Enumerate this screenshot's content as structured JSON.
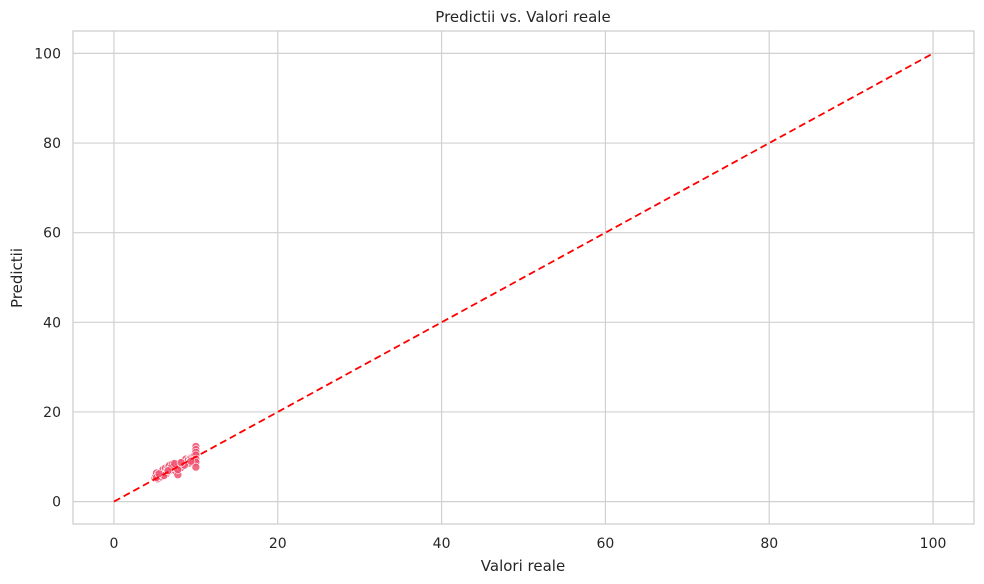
{
  "chart_data": {
    "type": "scatter",
    "title": "Predictii vs. Valori reale",
    "xlabel": "Valori reale",
    "ylabel": "Predictii",
    "xlim": [
      -5,
      105
    ],
    "ylim": [
      -5,
      105
    ],
    "x_ticks": [
      0,
      20,
      40,
      60,
      80,
      100
    ],
    "y_ticks": [
      0,
      20,
      40,
      60,
      80,
      100
    ],
    "grid": true,
    "point_color": "#f0506e",
    "reference_line": {
      "style": "dashed",
      "color": "#ff0000",
      "from": [
        0,
        0
      ],
      "to": [
        100,
        100
      ]
    },
    "series": [
      {
        "x": [
          5.0,
          5.1,
          5.2,
          5.3,
          5.4,
          5.5,
          5.6,
          5.7,
          5.8,
          5.9,
          6.0,
          6.1,
          6.2,
          6.3,
          6.4,
          6.5,
          6.6,
          6.7,
          6.8,
          6.9,
          7.0,
          7.1,
          7.2,
          7.3,
          7.4,
          7.5,
          7.6,
          7.7,
          7.8,
          7.9,
          8.0,
          8.1,
          8.2,
          8.3,
          8.4,
          8.5,
          8.6,
          8.7,
          8.8,
          8.9,
          9.0,
          9.1,
          9.2,
          9.3,
          9.4,
          9.5,
          9.6,
          9.7,
          9.8,
          9.9,
          10.0,
          10.0,
          10.0,
          10.0,
          10.0,
          10.0,
          10.0,
          5.2,
          6.1,
          7.0,
          7.8,
          8.6,
          9.4,
          5.5,
          6.6,
          7.4,
          8.2
        ],
        "y": [
          5.3,
          5.8,
          6.4,
          5.1,
          6.0,
          5.7,
          6.3,
          5.5,
          6.6,
          6.1,
          7.2,
          6.0,
          6.7,
          7.5,
          6.2,
          7.0,
          7.7,
          6.8,
          8.1,
          7.3,
          7.6,
          8.3,
          7.0,
          7.9,
          8.2,
          6.9,
          7.4,
          8.0,
          6.0,
          8.4,
          8.1,
          8.6,
          7.6,
          8.8,
          9.0,
          8.3,
          9.2,
          8.7,
          9.5,
          8.9,
          9.1,
          9.4,
          8.6,
          9.6,
          9.3,
          9.8,
          9.0,
          9.9,
          10.2,
          9.7,
          12.3,
          11.6,
          11.0,
          10.4,
          9.5,
          8.8,
          7.7,
          5.4,
          5.8,
          7.6,
          7.1,
          8.1,
          9.0,
          6.2,
          6.9,
          8.5,
          8.7
        ]
      }
    ]
  }
}
